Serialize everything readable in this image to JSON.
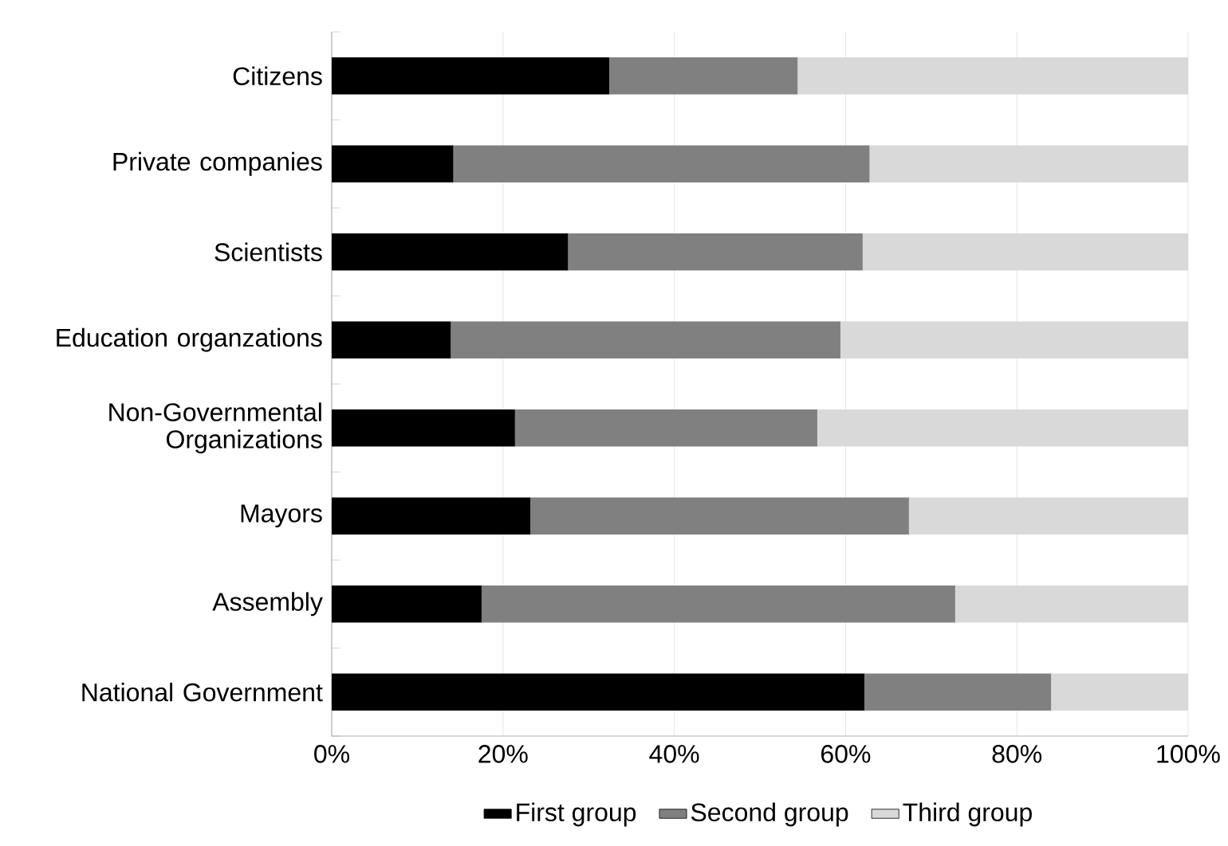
{
  "chart_data": {
    "type": "bar",
    "orientation": "horizontal",
    "stacked": true,
    "categories": [
      "Citizens",
      "Private companies",
      "Scientists",
      "Education organzations",
      "Non-Governmental Organizations",
      "Mayors",
      "Assembly",
      "National Government"
    ],
    "series": [
      {
        "name": "First group",
        "color": "#000000",
        "values": [
          32.4,
          14.2,
          27.6,
          13.9,
          21.4,
          23.2,
          17.5,
          62.2
        ]
      },
      {
        "name": "Second group",
        "color": "#808080",
        "values": [
          22.0,
          48.6,
          34.4,
          45.5,
          35.3,
          44.2,
          55.3,
          21.8
        ]
      },
      {
        "name": "Third group",
        "color": "#d9d9d9",
        "values": [
          45.6,
          37.2,
          38.0,
          40.6,
          43.3,
          32.6,
          27.2,
          16.0
        ]
      }
    ],
    "xlim": [
      0,
      100
    ],
    "xticks": [
      {
        "value": 0,
        "label": "0%"
      },
      {
        "value": 20,
        "label": "20%"
      },
      {
        "value": 40,
        "label": "40%"
      },
      {
        "value": 60,
        "label": "60%"
      },
      {
        "value": 80,
        "label": "80%"
      },
      {
        "value": 100,
        "label": "100%"
      }
    ],
    "grid": "x",
    "legend": "bottom"
  }
}
